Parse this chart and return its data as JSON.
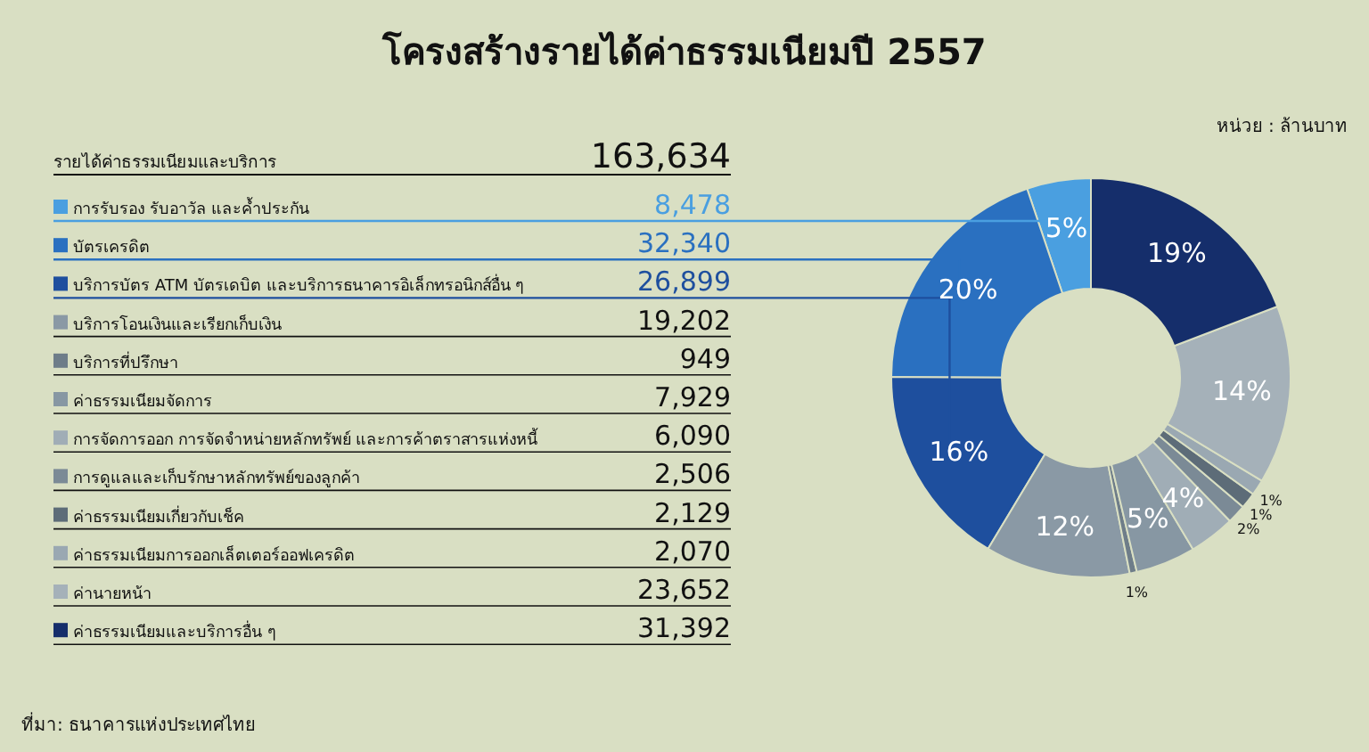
{
  "chart_data": {
    "type": "donut",
    "title": "โครงสร้างรายได้ค่าธรรมเนียมปี 2557",
    "categories": [
      "การรับรอง รับอาวัล และค้ำประกัน",
      "บัตรเครดิต",
      "บริการบัตร ATM  บัตรเดบิต  และบริการธนาคารอิเล็กทรอนิกส์อื่น ๆ",
      "บริการโอนเงินและเรียกเก็บเงิน",
      "บริการที่ปรึกษา",
      "ค่าธรรมเนียมจัดการ",
      "การจัดการออก การจัดจำหน่ายหลักทรัพย์ และการค้าตราสารแห่งหนี้",
      "การดูแลและเก็บรักษาหลักทรัพย์ของลูกค้า",
      "ค่าธรรมเนียมเกี่ยวกับเช็ค",
      "ค่าธรรมเนียมการออกเล็ตเตอร์ออฟเครดิต",
      "ค่านายหน้า",
      "ค่าธรรมเนียมและบริการอื่น ๆ"
    ],
    "values": [
      8478,
      32340,
      26899,
      19202,
      949,
      7929,
      6090,
      2506,
      2129,
      2070,
      23652,
      31392
    ],
    "value_labels": [
      "8,478",
      "32,340",
      "26,899",
      "19,202",
      "949",
      "7,929",
      "6,090",
      "2,506",
      "2,129",
      "2,070",
      "23,652",
      "31,392"
    ],
    "colors": [
      "#4a9fe0",
      "#2a70c0",
      "#1e4f9e",
      "#8a99a5",
      "#6e7d89",
      "#8797a3",
      "#a0adb6",
      "#7b8a96",
      "#5d6c78",
      "#9aa8b2",
      "#a5b1b9",
      "#152e6b"
    ],
    "legend": "left",
    "annotations": [
      "หน่วย : ล้านบาท",
      "ที่มา: ธนาคารแห่งประเทศไทย",
      "รายได้ค่าธรรมเนียมและบริการ",
      "163,634",
      "5%",
      "20%",
      "16%",
      "12%",
      "1%",
      "5%",
      "4%",
      "2%",
      "1%",
      "1%",
      "14%",
      "19%"
    ]
  }
}
